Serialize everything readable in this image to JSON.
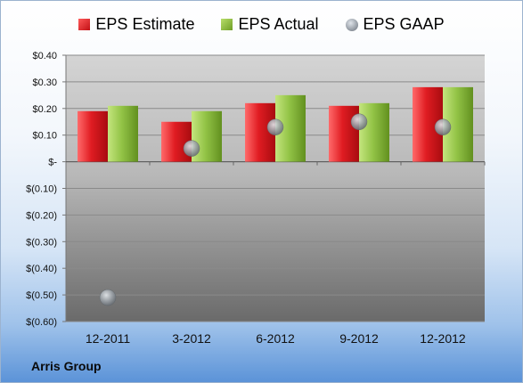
{
  "legend": {
    "estimate": "EPS Estimate",
    "actual": "EPS Actual",
    "gaap": "EPS GAAP"
  },
  "company": "Arris Group",
  "colors": {
    "estimate": "#d0181e",
    "actual": "#8cbf3f",
    "gaap": "#9aa0a6"
  },
  "chart_data": {
    "type": "bar",
    "categories": [
      "12-2011",
      "3-2012",
      "6-2012",
      "9-2012",
      "12-2012"
    ],
    "series": [
      {
        "name": "EPS Estimate",
        "type": "bar",
        "values": [
          0.19,
          0.15,
          0.22,
          0.21,
          0.28
        ]
      },
      {
        "name": "EPS Actual",
        "type": "bar",
        "values": [
          0.21,
          0.19,
          0.25,
          0.22,
          0.28
        ]
      },
      {
        "name": "EPS GAAP",
        "type": "scatter",
        "values": [
          -0.51,
          0.05,
          0.13,
          0.15,
          0.13
        ]
      }
    ],
    "yticks": [
      "$0.40",
      "$0.30",
      "$0.20",
      "$0.10",
      "$-",
      "$(0.10)",
      "$(0.20)",
      "$(0.30)",
      "$(0.40)",
      "$(0.50)",
      "$(0.60)"
    ],
    "ylim": [
      -0.6,
      0.4
    ],
    "grid": true,
    "legend_position": "top"
  }
}
